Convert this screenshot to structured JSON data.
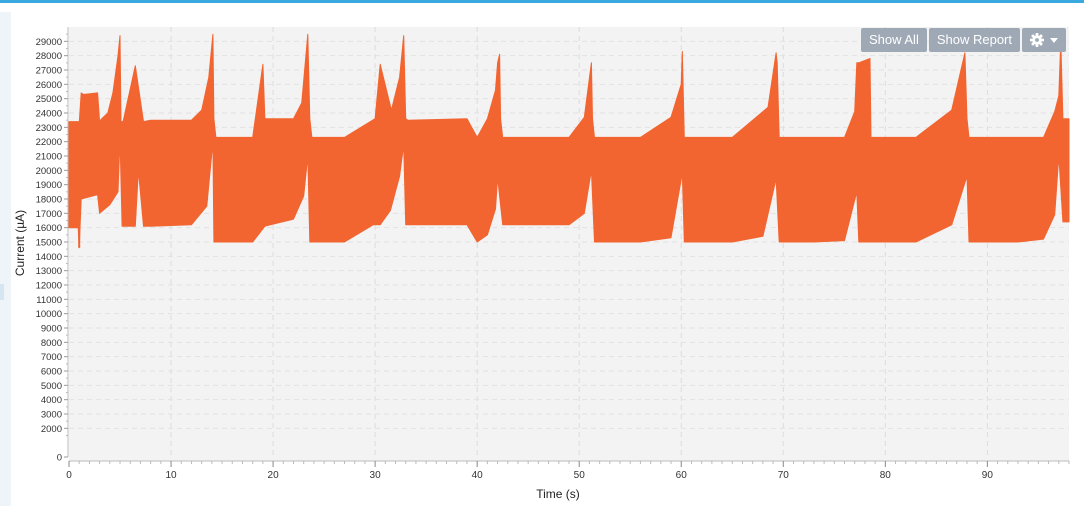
{
  "controls": {
    "show_all_label": "Show All",
    "show_report_label": "Show Report",
    "settings_icon": "gear-icon",
    "settings_caret_icon": "caret-down-icon"
  },
  "colors": {
    "series": "#f26430",
    "plot_bg": "#f3f3f3",
    "accent_top": "#3aa9e0",
    "button_bg": "#9fa9b6"
  },
  "chart_data": {
    "type": "line",
    "title": "",
    "xlabel": "Time (s)",
    "ylabel": "Current (µA)",
    "xlim": [
      0,
      98
    ],
    "ylim": [
      0,
      30000
    ],
    "x_ticks": [
      0,
      10,
      20,
      30,
      40,
      50,
      60,
      70,
      80,
      90
    ],
    "y_ticks": [
      0,
      2000,
      3000,
      4000,
      5000,
      6000,
      7000,
      8000,
      9000,
      10000,
      11000,
      12000,
      13000,
      14000,
      15000,
      16000,
      17000,
      18000,
      19000,
      20000,
      21000,
      22000,
      23000,
      24000,
      25000,
      26000,
      27000,
      28000,
      29000
    ],
    "grid": true,
    "legend": "none",
    "series": [
      {
        "color": "#f26430",
        "upper": {
          "x": [
            0,
            0.9,
            1.0,
            1.2,
            1.4,
            1.5,
            2.8,
            3.0,
            3.2,
            3.8,
            4.3,
            4.8,
            5.0,
            5.1,
            5.3,
            6.5,
            7.3,
            8.0,
            12.0,
            13.0,
            13.7,
            14.1,
            14.2,
            14.4,
            16.0,
            18.0,
            19.0,
            19.2,
            22.0,
            22.8,
            23.4,
            23.6,
            23.8,
            27.0,
            30.0,
            30.5,
            31.6,
            32.4,
            32.8,
            33.0,
            33.2,
            39.0,
            40.0,
            41.0,
            41.8,
            42.0,
            42.2,
            42.3,
            42.5,
            45.0,
            49.0,
            50.5,
            51.2,
            51.3,
            51.5,
            56.0,
            59.0,
            60.0,
            60.1,
            60.3,
            65.0,
            68.5,
            69.3,
            69.4,
            69.6,
            73.0,
            76.0,
            77.0,
            77.2,
            77.4,
            78.5,
            78.6,
            78.8,
            83.0,
            86.5,
            87.8,
            88.0,
            88.2,
            93.0,
            95.5,
            96.6,
            97.0,
            97.2,
            97.4,
            97.8,
            98.0
          ],
          "y": [
            23400,
            23400,
            23300,
            25400,
            25300,
            25300,
            25400,
            23400,
            23600,
            24000,
            25400,
            28000,
            29400,
            23400,
            23400,
            27300,
            23400,
            23500,
            23500,
            24200,
            26500,
            29500,
            23600,
            22300,
            22300,
            22300,
            27400,
            23600,
            23600,
            24700,
            29500,
            23600,
            22300,
            22300,
            23600,
            27400,
            24200,
            26500,
            29400,
            23600,
            23500,
            23600,
            22300,
            23600,
            25600,
            27500,
            28100,
            23600,
            22300,
            22300,
            22300,
            23700,
            27500,
            23600,
            22300,
            22300,
            23700,
            26000,
            28300,
            22300,
            22300,
            24400,
            28200,
            27500,
            22300,
            22300,
            22300,
            24100,
            27500,
            27500,
            27800,
            22300,
            22300,
            22300,
            24200,
            28200,
            23600,
            22300,
            22300,
            22300,
            24100,
            25200,
            29000,
            23600,
            23600,
            23600
          ]
        },
        "lower": {
          "x": [
            0,
            0.9,
            1.0,
            1.2,
            2.8,
            3.0,
            4.0,
            4.8,
            5.0,
            5.2,
            6.5,
            6.8,
            7.3,
            8.0,
            12.0,
            13.5,
            14.1,
            14.2,
            16.0,
            18.0,
            19.2,
            22.0,
            23.0,
            23.4,
            23.6,
            27.0,
            29.8,
            30.5,
            31.5,
            32.4,
            32.8,
            33.0,
            39.0,
            40.0,
            41.0,
            41.8,
            42.0,
            42.5,
            45.0,
            49.0,
            50.5,
            51.2,
            51.5,
            56.0,
            59.0,
            60.1,
            60.3,
            65.0,
            68.0,
            69.3,
            69.6,
            73.0,
            76.0,
            77.2,
            77.4,
            78.5,
            78.8,
            83.0,
            86.5,
            88.0,
            88.2,
            93.0,
            95.5,
            96.6,
            97.0,
            97.4,
            98.0
          ],
          "y": [
            16000,
            16000,
            14600,
            18000,
            18300,
            17000,
            17600,
            18500,
            22200,
            16100,
            16100,
            20000,
            16100,
            16100,
            16200,
            17500,
            22000,
            15000,
            15000,
            15000,
            16100,
            16600,
            18200,
            21000,
            15000,
            15000,
            16200,
            16200,
            17200,
            19600,
            21800,
            16200,
            16200,
            15000,
            15500,
            17300,
            19500,
            16200,
            16200,
            16200,
            17000,
            20000,
            15000,
            15000,
            15300,
            19800,
            15000,
            15000,
            15400,
            19400,
            15000,
            15000,
            15100,
            18500,
            15000,
            15000,
            15000,
            15000,
            16200,
            19600,
            15000,
            15000,
            15200,
            16900,
            21000,
            16400,
            16400
          ]
        },
        "min_x": 1.0,
        "min_y": 14600
      }
    ]
  }
}
